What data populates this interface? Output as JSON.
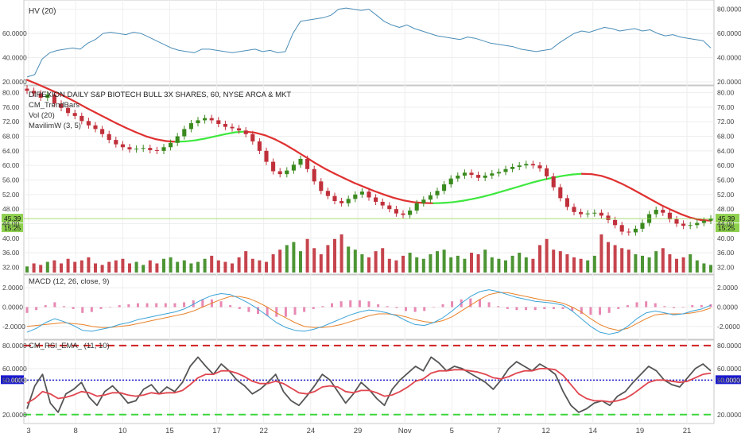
{
  "chart_data": {
    "type": "candlestick",
    "x_ticks": [
      "3",
      "8",
      "10",
      "15",
      "17",
      "22",
      "24",
      "29",
      "Nov",
      "5",
      "7",
      "12",
      "14",
      "19",
      "21"
    ],
    "panes": {
      "hv": {
        "label": "HV (20)",
        "ylim": [
          20,
          85
        ],
        "ticks_left": [
          "60.0000",
          "40.0000",
          "20.0000"
        ],
        "ticks_right": [
          "80.0000",
          "60.0000",
          "40.0000",
          "20.0000"
        ],
        "color": "#4a8db7",
        "values": [
          24,
          26,
          39,
          44,
          46,
          47,
          48,
          47,
          52,
          55,
          60,
          61,
          60,
          59,
          61,
          60,
          57,
          54,
          51,
          48,
          46,
          45,
          44,
          47,
          47,
          46,
          45,
          44,
          45,
          46,
          47,
          45,
          46,
          44,
          45,
          60,
          70,
          71,
          72,
          73,
          75,
          80,
          81,
          80,
          79,
          80,
          75,
          70,
          67,
          65,
          67,
          64,
          62,
          60,
          58,
          57,
          56,
          55,
          57,
          56,
          54,
          52,
          51,
          50,
          49,
          47,
          46,
          45,
          46,
          47,
          52,
          56,
          60,
          62,
          61,
          63,
          65,
          64,
          62,
          63,
          64,
          62,
          63,
          60,
          58,
          59,
          57,
          56,
          55,
          54,
          48
        ]
      },
      "price": {
        "title": "DIREXION DAILY S&P BIOTECH BULL 3X SHARES, 60, NYSE ARCA & MKT",
        "legend": [
          "CM_TrendBars",
          "Vol (20)",
          "MavilimW (3, 5)"
        ],
        "ylim": [
          31,
          81
        ],
        "ticks_left": [
          "80.00",
          "76.00",
          "72.00",
          "68.00",
          "64.00",
          "60.00",
          "56.00",
          "52.00",
          "48.00",
          "44.00",
          "40.00",
          "36.00",
          "32.00"
        ],
        "ticks_right": [
          "80.00",
          "76.00",
          "72.00",
          "68.00",
          "64.00",
          "60.00",
          "56.00",
          "52.00",
          "48.00",
          "44.00",
          "40.00",
          "36.00",
          "32.00"
        ],
        "last_price": "45.39",
        "last_price_num": 45.39,
        "countdown": "15:25",
        "up_color": "#3a8a1e",
        "down_color": "#c0303a",
        "highlight_up_color": "#8fd14f",
        "close": [
          80.5,
          79.8,
          78.6,
          79.5,
          77.0,
          75.8,
          74.4,
          73.6,
          72.2,
          71.0,
          70.0,
          68.6,
          67.0,
          65.8,
          65.0,
          64.4,
          64.6,
          64.8,
          64.2,
          64.0,
          65.0,
          66.2,
          68.0,
          70.0,
          71.6,
          72.4,
          73.0,
          72.4,
          71.4,
          70.6,
          70.2,
          69.6,
          68.6,
          66.6,
          64.0,
          61.0,
          58.4,
          57.6,
          58.6,
          60.2,
          61.8,
          59.0,
          55.6,
          53.0,
          51.6,
          50.2,
          49.6,
          50.8,
          52.0,
          52.8,
          51.2,
          50.0,
          49.0,
          48.0,
          46.8,
          46.4,
          47.6,
          49.6,
          50.6,
          51.8,
          53.0,
          54.8,
          56.4,
          57.2,
          58.0,
          57.4,
          56.6,
          57.2,
          57.8,
          58.2,
          59.0,
          59.6,
          60.0,
          60.4,
          60.0,
          59.2,
          57.0,
          54.0,
          51.0,
          48.6,
          47.2,
          46.6,
          46.8,
          47.0,
          46.2,
          45.0,
          43.6,
          41.8,
          41.6,
          42.6,
          44.2,
          46.6,
          47.8,
          47.0,
          45.2,
          44.0,
          43.4,
          43.6,
          44.2,
          44.8,
          45.39
        ],
        "mavilimw": [
          83.5,
          82.4,
          81.2,
          80.0,
          78.7,
          77.3,
          75.8,
          74.4,
          73.0,
          71.6,
          70.3,
          69.1,
          68.0,
          67.2,
          66.7,
          66.5,
          66.6,
          66.9,
          67.4,
          68.0,
          68.6,
          69.1,
          69.3,
          69.0,
          68.3,
          67.2,
          65.8,
          64.2,
          62.5,
          60.8,
          59.2,
          57.8,
          56.5,
          55.2,
          54.1,
          53.0,
          52.0,
          51.1,
          50.4,
          49.9,
          49.7,
          49.6,
          49.7,
          49.9,
          50.3,
          50.8,
          51.4,
          52.1,
          52.9,
          53.7,
          54.5,
          55.3,
          56.0,
          56.6,
          57.1,
          57.5,
          57.7,
          57.6,
          57.1,
          56.2,
          55.0,
          53.6,
          52.1,
          50.6,
          49.1,
          47.8,
          46.6,
          45.6,
          45.0,
          44.8
        ],
        "volume": [
          4,
          6,
          5,
          7,
          8,
          6,
          9,
          7,
          8,
          10,
          6,
          5,
          7,
          8,
          9,
          6,
          7,
          5,
          8,
          6,
          9,
          10,
          7,
          8,
          6,
          7,
          9,
          11,
          8,
          7,
          6,
          10,
          14,
          9,
          8,
          7,
          12,
          15,
          18,
          20,
          14,
          22,
          16,
          12,
          18,
          22,
          25,
          17,
          15,
          12,
          10,
          14,
          16,
          9,
          8,
          11,
          13,
          10,
          9,
          12,
          14,
          15,
          10,
          11,
          9,
          13,
          12,
          15,
          10,
          9,
          8,
          11,
          13,
          10,
          9,
          18,
          22,
          15,
          14,
          12,
          10,
          9,
          8,
          11,
          25,
          20,
          18,
          16,
          15,
          12,
          11,
          10,
          14,
          16,
          12,
          9,
          10,
          12,
          8,
          6,
          5
        ]
      },
      "macd": {
        "label": "MACD (12, 26, close, 9)",
        "ylim": [
          -3,
          3
        ],
        "ticks_left": [
          "2.0000",
          "0.0000",
          "-2.0000"
        ],
        "ticks_right": [
          "2.0000",
          "0.0000",
          "-2.0000"
        ],
        "macd_color": "#3ba3d8",
        "signal_color": "#e8822a",
        "hist_color": "#e0609a",
        "macd": [
          -2.6,
          -2.2,
          -1.6,
          -1.2,
          -1.5,
          -1.9,
          -2.4,
          -2.5,
          -2.3,
          -2.1,
          -1.8,
          -1.6,
          -1.3,
          -1.1,
          -0.9,
          -0.7,
          -0.5,
          -0.2,
          0.3,
          0.8,
          1.2,
          1.4,
          1.3,
          0.9,
          0.4,
          -0.2,
          -0.9,
          -1.6,
          -2.1,
          -2.4,
          -2.5,
          -2.3,
          -2.0,
          -1.6,
          -1.2,
          -0.8,
          -0.5,
          -0.3,
          -0.4,
          -0.6,
          -0.9,
          -1.4,
          -1.8,
          -1.9,
          -1.6,
          -1.1,
          -0.4,
          0.4,
          1.1,
          1.6,
          1.8,
          1.6,
          1.3,
          1.0,
          0.8,
          0.6,
          0.5,
          0.4,
          0.2,
          -0.4,
          -1.2,
          -2.0,
          -2.6,
          -2.8,
          -2.6,
          -2.0,
          -1.2,
          -0.6,
          -0.4,
          -0.6,
          -0.8,
          -0.7,
          -0.4,
          -0.2,
          0.2
        ],
        "signal": [
          -2.0,
          -1.9,
          -1.8,
          -1.7,
          -1.6,
          -1.7,
          -1.8,
          -2.0,
          -2.1,
          -2.1,
          -2.0,
          -1.9,
          -1.7,
          -1.5,
          -1.3,
          -1.1,
          -0.9,
          -0.7,
          -0.4,
          0.0,
          0.4,
          0.8,
          1.1,
          1.1,
          0.9,
          0.5,
          0.0,
          -0.6,
          -1.1,
          -1.6,
          -2.0,
          -2.1,
          -2.1,
          -2.0,
          -1.8,
          -1.5,
          -1.2,
          -0.9,
          -0.7,
          -0.7,
          -0.8,
          -1.0,
          -1.3,
          -1.5,
          -1.6,
          -1.4,
          -1.0,
          -0.4,
          0.2,
          0.8,
          1.3,
          1.5,
          1.5,
          1.3,
          1.1,
          0.9,
          0.7,
          0.6,
          0.4,
          0.0,
          -0.5,
          -1.2,
          -1.8,
          -2.2,
          -2.4,
          -2.2,
          -1.7,
          -1.2,
          -0.8,
          -0.7,
          -0.7,
          -0.7,
          -0.6,
          -0.4,
          -0.1
        ]
      },
      "rsi": {
        "label": "CM_RSI_EMA_ (11, 10)",
        "ylim": [
          15,
          82
        ],
        "ticks_left": [
          "80.0000",
          "60.0000",
          "50.0000",
          "20.0000"
        ],
        "ticks_right": [
          "80.0000",
          "60.0000",
          "50.0000",
          "20.0000"
        ],
        "upper_band": 80,
        "mid_band": 50,
        "lower_band": 20,
        "rsi_color": "#555555",
        "ema_color": "#e0464f",
        "rsi": [
          25,
          45,
          55,
          30,
          22,
          38,
          42,
          48,
          35,
          28,
          40,
          45,
          38,
          30,
          32,
          42,
          46,
          38,
          44,
          40,
          48,
          62,
          70,
          62,
          55,
          64,
          58,
          50,
          45,
          38,
          42,
          48,
          55,
          40,
          32,
          28,
          36,
          45,
          55,
          50,
          40,
          30,
          38,
          48,
          42,
          34,
          28,
          42,
          50,
          56,
          62,
          58,
          70,
          65,
          58,
          62,
          60,
          56,
          52,
          48,
          42,
          50,
          60,
          66,
          62,
          58,
          64,
          60,
          55,
          40,
          28,
          22,
          25,
          30,
          32,
          28,
          36,
          40,
          48,
          55,
          62,
          58,
          50,
          46,
          44,
          52,
          60,
          64,
          58
        ],
        "ema": [
          30,
          34,
          40,
          38,
          34,
          35,
          37,
          40,
          39,
          36,
          37,
          39,
          39,
          37,
          36,
          37,
          39,
          38,
          39,
          39,
          41,
          46,
          52,
          55,
          55,
          58,
          58,
          56,
          53,
          49,
          47,
          47,
          49,
          47,
          43,
          39,
          38,
          40,
          44,
          45,
          44,
          40,
          39,
          41,
          41,
          39,
          36,
          37,
          40,
          44,
          49,
          51,
          56,
          58,
          58,
          59,
          59,
          58,
          57,
          55,
          52,
          51,
          53,
          56,
          58,
          58,
          60,
          60,
          59,
          54,
          46,
          38,
          34,
          32,
          32,
          31,
          32,
          34,
          38,
          43,
          48,
          50,
          50,
          49,
          48,
          49,
          52,
          55,
          56
        ]
      }
    }
  }
}
